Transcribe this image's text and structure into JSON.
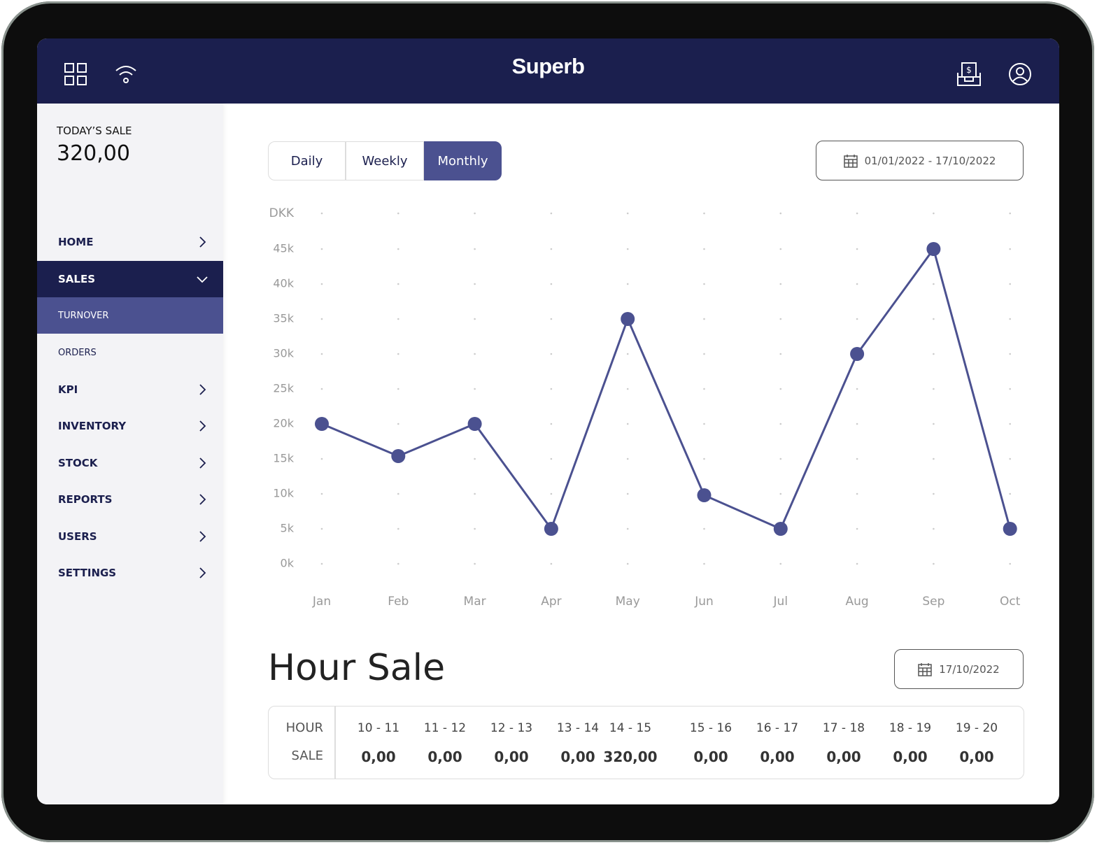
{
  "header": {
    "brand": "Superb"
  },
  "sidebar": {
    "todays_sale_label": "TODAY’S SALE",
    "todays_sale_value": "320,00",
    "menu": [
      {
        "label": "HOME",
        "level": "top"
      },
      {
        "label": "SALES",
        "level": "top",
        "active": true
      },
      {
        "label": "TURNOVER",
        "level": "sub",
        "active": true
      },
      {
        "label": "ORDERS",
        "level": "sub"
      },
      {
        "label": "KPI",
        "level": "top"
      },
      {
        "label": "INVENTORY",
        "level": "top"
      },
      {
        "label": "STOCK",
        "level": "top"
      },
      {
        "label": "REPORTS",
        "level": "top"
      },
      {
        "label": "USERS",
        "level": "top"
      },
      {
        "label": "SETTINGS",
        "level": "top"
      }
    ]
  },
  "tabs": {
    "items": [
      "Daily",
      "Weekly",
      "Monthly"
    ],
    "active": 2
  },
  "date_range": "01/01/2022 - 17/10/2022",
  "chart_data": {
    "type": "line",
    "y_unit_label": "DKK",
    "categories": [
      "Jan",
      "Feb",
      "Mar",
      "Apr",
      "May",
      "Jun",
      "Jul",
      "Aug",
      "Sep",
      "Oct"
    ],
    "values": [
      20000,
      15400,
      20000,
      5000,
      35000,
      9800,
      5000,
      30000,
      45000,
      5000
    ],
    "color": "#4b5190",
    "ylim": [
      0,
      45000
    ],
    "yticks": [
      {
        "value": 0,
        "label": "0k"
      },
      {
        "value": 5000,
        "label": "5k"
      },
      {
        "value": 10000,
        "label": "10k"
      },
      {
        "value": 15000,
        "label": "15k"
      },
      {
        "value": 20000,
        "label": "20k"
      },
      {
        "value": 25000,
        "label": "25k"
      },
      {
        "value": 30000,
        "label": "30k"
      },
      {
        "value": 35000,
        "label": "35k"
      },
      {
        "value": 40000,
        "label": "40k"
      },
      {
        "value": 45000,
        "label": "45k"
      }
    ],
    "grid": "dotted"
  },
  "hour_sale": {
    "title": "Hour Sale",
    "date": "17/10/2022",
    "row_labels": [
      "HOUR",
      "SALE"
    ],
    "hours": [
      "10 - 11",
      "11 - 12",
      "12 - 13",
      "13 - 14",
      "14 - 15",
      "15 - 16",
      "16 - 17",
      "17 - 18",
      "18 - 19",
      "19 - 20"
    ],
    "sales": [
      "0,00",
      "0,00",
      "0,00",
      "0,00",
      "320,00",
      "0,00",
      "0,00",
      "0,00",
      "0,00",
      "0,00"
    ]
  }
}
